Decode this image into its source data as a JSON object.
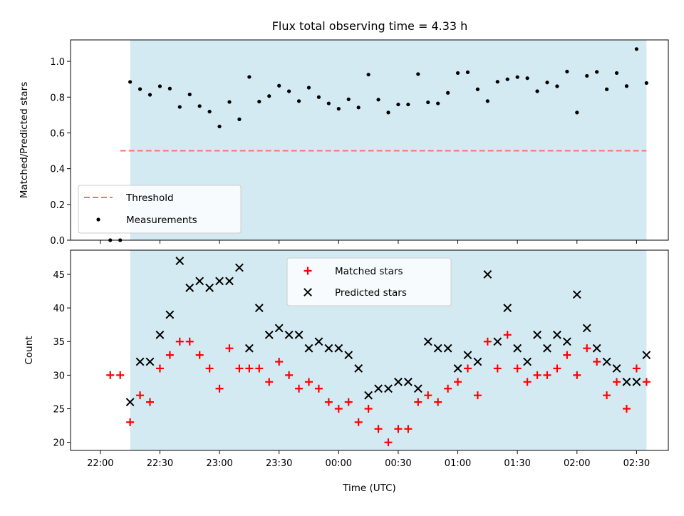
{
  "title": "Flux total observing time = 4.33 h",
  "colors": {
    "shade": "#add8e6",
    "threshold": "#ff7070",
    "measurement": "#000000",
    "matched": "#ff0000",
    "predicted": "#000000"
  },
  "chart_data": [
    {
      "type": "scatter",
      "ylabel": "Matched/Predicted stars",
      "ylim": [
        0.0,
        1.12
      ],
      "yticks": [
        "0.0",
        "0.2",
        "0.4",
        "0.6",
        "0.8",
        "1.0"
      ],
      "shaded_span": [
        "22:15",
        "02:35"
      ],
      "threshold": {
        "name": "Threshold",
        "value": 0.5,
        "x": [
          "22:10",
          "02:35"
        ]
      },
      "legend": [
        "Threshold",
        "Measurements"
      ],
      "legend_position": "lower left",
      "series": [
        {
          "name": "Measurements",
          "x": [
            "22:05",
            "22:10",
            "22:15",
            "22:20",
            "22:25",
            "22:30",
            "22:35",
            "22:40",
            "22:45",
            "22:50",
            "22:55",
            "23:00",
            "23:05",
            "23:10",
            "23:15",
            "23:20",
            "23:25",
            "23:30",
            "23:35",
            "23:40",
            "23:45",
            "23:50",
            "23:55",
            "00:00",
            "00:05",
            "00:10",
            "00:15",
            "00:20",
            "00:25",
            "00:30",
            "00:35",
            "00:40",
            "00:45",
            "00:50",
            "00:55",
            "01:00",
            "01:05",
            "01:10",
            "01:15",
            "01:20",
            "01:25",
            "01:30",
            "01:35",
            "01:40",
            "01:45",
            "01:50",
            "01:55",
            "02:00",
            "02:05",
            "02:10",
            "02:15",
            "02:20",
            "02:25",
            "02:30",
            "02:35"
          ],
          "y": [
            0.0,
            0.0,
            0.885,
            0.845,
            0.813,
            0.861,
            0.848,
            0.745,
            0.815,
            0.75,
            0.719,
            0.636,
            0.773,
            0.676,
            0.913,
            0.775,
            0.806,
            0.864,
            0.833,
            0.778,
            0.853,
            0.8,
            0.765,
            0.735,
            0.788,
            0.742,
            0.926,
            0.786,
            0.714,
            0.759,
            0.759,
            0.929,
            0.771,
            0.765,
            0.824,
            0.935,
            0.939,
            0.844,
            0.778,
            0.886,
            0.9,
            0.912,
            0.906,
            0.833,
            0.882,
            0.861,
            0.943,
            0.714,
            0.919,
            0.941,
            0.844,
            0.935,
            0.862,
            1.069,
            0.879
          ]
        }
      ]
    },
    {
      "type": "scatter",
      "xlabel": "Time (UTC)",
      "ylabel": "Count",
      "ylim": [
        18.8,
        48.6
      ],
      "yticks": [
        "20",
        "25",
        "30",
        "35",
        "40",
        "45"
      ],
      "xticks": [
        "22:00",
        "22:30",
        "23:00",
        "23:30",
        "00:00",
        "00:30",
        "01:00",
        "01:30",
        "02:00",
        "02:30"
      ],
      "shaded_span": [
        "22:15",
        "02:35"
      ],
      "legend": [
        "Matched stars",
        "Predicted stars"
      ],
      "legend_position": "upper center",
      "series": [
        {
          "name": "Matched stars",
          "x": [
            "22:05",
            "22:10",
            "22:15",
            "22:20",
            "22:25",
            "22:30",
            "22:35",
            "22:40",
            "22:45",
            "22:50",
            "22:55",
            "23:00",
            "23:05",
            "23:10",
            "23:15",
            "23:20",
            "23:25",
            "23:30",
            "23:35",
            "23:40",
            "23:45",
            "23:50",
            "23:55",
            "00:00",
            "00:05",
            "00:10",
            "00:15",
            "00:20",
            "00:25",
            "00:30",
            "00:35",
            "00:40",
            "00:45",
            "00:50",
            "00:55",
            "01:00",
            "01:05",
            "01:10",
            "01:15",
            "01:20",
            "01:25",
            "01:30",
            "01:35",
            "01:40",
            "01:45",
            "01:50",
            "01:55",
            "02:00",
            "02:05",
            "02:10",
            "02:15",
            "02:20",
            "02:25",
            "02:30",
            "02:35"
          ],
          "y": [
            30,
            30,
            23,
            27,
            26,
            31,
            33,
            35,
            35,
            33,
            31,
            28,
            34,
            31,
            31,
            31,
            29,
            32,
            30,
            28,
            29,
            28,
            26,
            25,
            26,
            23,
            25,
            22,
            20,
            22,
            22,
            26,
            27,
            26,
            28,
            29,
            31,
            27,
            35,
            31,
            36,
            31,
            29,
            30,
            30,
            31,
            33,
            30,
            34,
            32,
            27,
            29,
            25,
            31,
            29
          ]
        },
        {
          "name": "Predicted stars",
          "x": [
            "22:15",
            "22:20",
            "22:25",
            "22:30",
            "22:35",
            "22:40",
            "22:45",
            "22:50",
            "22:55",
            "23:00",
            "23:05",
            "23:10",
            "23:15",
            "23:20",
            "23:25",
            "23:30",
            "23:35",
            "23:40",
            "23:45",
            "23:50",
            "23:55",
            "00:00",
            "00:05",
            "00:10",
            "00:15",
            "00:20",
            "00:25",
            "00:30",
            "00:35",
            "00:40",
            "00:45",
            "00:50",
            "00:55",
            "01:00",
            "01:05",
            "01:10",
            "01:15",
            "01:20",
            "01:25",
            "01:30",
            "01:35",
            "01:40",
            "01:45",
            "01:50",
            "01:55",
            "02:00",
            "02:05",
            "02:10",
            "02:15",
            "02:20",
            "02:25",
            "02:30",
            "02:35"
          ],
          "y": [
            26,
            32,
            32,
            36,
            39,
            47,
            43,
            44,
            43,
            44,
            44,
            46,
            34,
            40,
            36,
            37,
            36,
            36,
            34,
            35,
            34,
            34,
            33,
            31,
            27,
            28,
            28,
            29,
            29,
            28,
            35,
            34,
            34,
            31,
            33,
            32,
            45,
            35,
            40,
            34,
            32,
            36,
            34,
            36,
            35,
            42,
            37,
            34,
            32,
            31,
            29,
            29,
            33
          ]
        }
      ]
    }
  ]
}
